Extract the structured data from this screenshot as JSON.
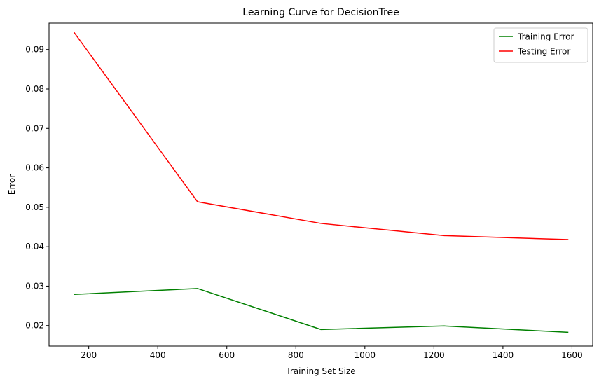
{
  "chart_data": {
    "type": "line",
    "title": "Learning Curve for DecisionTree",
    "xlabel": "Training Set Size",
    "ylabel": "Error",
    "xlim": [
      85,
      1660
    ],
    "ylim": [
      0.0148,
      0.0967
    ],
    "xticks": [
      200,
      400,
      600,
      800,
      1000,
      1200,
      1400,
      1600
    ],
    "xtick_labels": [
      "200",
      "400",
      "600",
      "800",
      "1000",
      "1200",
      "1400",
      "1600"
    ],
    "yticks": [
      0.02,
      0.03,
      0.04,
      0.05,
      0.06,
      0.07,
      0.08,
      0.09
    ],
    "ytick_labels": [
      "0.02",
      "0.03",
      "0.04",
      "0.05",
      "0.06",
      "0.07",
      "0.08",
      "0.09"
    ],
    "grid": false,
    "legend_position": "top-right",
    "x": [
      158,
      515,
      873,
      1230,
      1588
    ],
    "series": [
      {
        "name": "Training Error",
        "color": "#008000",
        "values": [
          0.0279,
          0.0294,
          0.019,
          0.0199,
          0.0183
        ]
      },
      {
        "name": "Testing Error",
        "color": "#ff0000",
        "values": [
          0.0943,
          0.0514,
          0.0459,
          0.0428,
          0.0418
        ]
      }
    ]
  }
}
